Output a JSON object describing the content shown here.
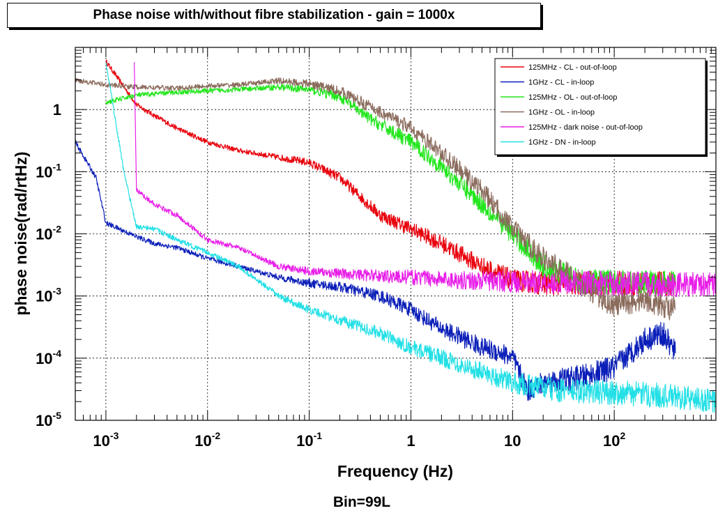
{
  "title": "Phase noise with/without fibre stabilization - gain = 1000x",
  "chart_data": {
    "type": "line",
    "title": "Phase noise with/without fibre stabilization - gain = 1000x",
    "xlabel": "Frequency (Hz)",
    "ylabel": "phase noise(rad/rtHz)",
    "footer": "Bin=99L",
    "x_scale": "log",
    "y_scale": "log",
    "xlim": [
      0.0005,
      1000
    ],
    "ylim": [
      1e-05,
      10
    ],
    "grid": true,
    "legend_position": "top-right",
    "x_ticks": [
      {
        "value": 0.001,
        "base": "10",
        "exp": "-3"
      },
      {
        "value": 0.01,
        "base": "10",
        "exp": "-2"
      },
      {
        "value": 0.1,
        "base": "10",
        "exp": "-1"
      },
      {
        "value": 1,
        "base": "1",
        "exp": ""
      },
      {
        "value": 10,
        "base": "10",
        "exp": ""
      },
      {
        "value": 100,
        "base": "10",
        "exp": "2"
      }
    ],
    "y_ticks": [
      {
        "value": 1,
        "base": "1",
        "exp": ""
      },
      {
        "value": 0.1,
        "base": "10",
        "exp": "-1"
      },
      {
        "value": 0.01,
        "base": "10",
        "exp": "-2"
      },
      {
        "value": 0.001,
        "base": "10",
        "exp": "-3"
      },
      {
        "value": 0.0001,
        "base": "10",
        "exp": "-4"
      },
      {
        "value": 1e-05,
        "base": "10",
        "exp": "-5"
      }
    ],
    "series": [
      {
        "name": "125MHz - CL - out-of-loop",
        "color": "#e8000b",
        "points": [
          [
            0.001,
            6
          ],
          [
            0.002,
            1.2
          ],
          [
            0.003,
            0.8
          ],
          [
            0.005,
            0.5
          ],
          [
            0.01,
            0.3
          ],
          [
            0.02,
            0.22
          ],
          [
            0.05,
            0.17
          ],
          [
            0.1,
            0.14
          ],
          [
            0.2,
            0.08
          ],
          [
            0.5,
            0.02
          ],
          [
            1,
            0.012
          ],
          [
            2,
            0.007
          ],
          [
            5,
            0.003
          ],
          [
            10,
            0.0018
          ],
          [
            20,
            0.0016
          ],
          [
            50,
            0.0016
          ],
          [
            100,
            0.0016
          ],
          [
            400,
            0.0016
          ]
        ]
      },
      {
        "name": "1GHz - CL - in-loop",
        "color": "#0a1eb8",
        "points": [
          [
            0.0005,
            0.3
          ],
          [
            0.0008,
            0.08
          ],
          [
            0.001,
            0.015
          ],
          [
            0.002,
            0.009
          ],
          [
            0.003,
            0.007
          ],
          [
            0.005,
            0.006
          ],
          [
            0.01,
            0.004
          ],
          [
            0.02,
            0.003
          ],
          [
            0.05,
            0.002
          ],
          [
            0.1,
            0.0016
          ],
          [
            0.2,
            0.0014
          ],
          [
            0.5,
            0.001
          ],
          [
            1,
            0.0006
          ],
          [
            2,
            0.0003
          ],
          [
            5,
            0.00015
          ],
          [
            8,
            0.00012
          ],
          [
            10,
            0.0001
          ],
          [
            14,
            3e-05
          ],
          [
            20,
            4e-05
          ],
          [
            50,
            5e-05
          ],
          [
            100,
            7e-05
          ],
          [
            200,
            0.0002
          ],
          [
            300,
            0.00025
          ],
          [
            400,
            0.00012
          ]
        ]
      },
      {
        "name": "125MHz - OL - out-of-loop",
        "color": "#22e61c",
        "points": [
          [
            0.001,
            1.3
          ],
          [
            0.002,
            1.7
          ],
          [
            0.005,
            1.9
          ],
          [
            0.01,
            2
          ],
          [
            0.02,
            2.1
          ],
          [
            0.05,
            2.3
          ],
          [
            0.1,
            2.1
          ],
          [
            0.2,
            1.6
          ],
          [
            0.4,
            0.7
          ],
          [
            1,
            0.3
          ],
          [
            2,
            0.12
          ],
          [
            5,
            0.03
          ],
          [
            10,
            0.01
          ],
          [
            20,
            0.003
          ],
          [
            50,
            0.0017
          ],
          [
            100,
            0.0017
          ],
          [
            400,
            0.0016
          ]
        ]
      },
      {
        "name": "1GHz - OL - in-loop",
        "color": "#8a6b5c",
        "points": [
          [
            0.0005,
            3
          ],
          [
            0.001,
            2.5
          ],
          [
            0.002,
            2.3
          ],
          [
            0.005,
            2.2
          ],
          [
            0.01,
            2.4
          ],
          [
            0.02,
            2.5
          ],
          [
            0.05,
            2.9
          ],
          [
            0.1,
            2.6
          ],
          [
            0.2,
            2
          ],
          [
            0.4,
            1.1
          ],
          [
            1,
            0.5
          ],
          [
            2,
            0.2
          ],
          [
            5,
            0.05
          ],
          [
            10,
            0.012
          ],
          [
            20,
            0.004
          ],
          [
            50,
            0.0015
          ],
          [
            100,
            0.0007
          ],
          [
            200,
            0.0009
          ],
          [
            400,
            0.0006
          ]
        ]
      },
      {
        "name": "125MHz - dark noise - out-of-loop",
        "color": "#e81ee8",
        "points": [
          [
            0.0019,
            6
          ],
          [
            0.002,
            0.05
          ],
          [
            0.003,
            0.03
          ],
          [
            0.005,
            0.02
          ],
          [
            0.01,
            0.008
          ],
          [
            0.02,
            0.006
          ],
          [
            0.05,
            0.003
          ],
          [
            0.1,
            0.0025
          ],
          [
            0.3,
            0.0022
          ],
          [
            1,
            0.002
          ],
          [
            3,
            0.0018
          ],
          [
            10,
            0.0017
          ],
          [
            100,
            0.0016
          ],
          [
            1000,
            0.0015
          ]
        ]
      },
      {
        "name": "1GHz - DN - in-loop",
        "color": "#22e0e6",
        "points": [
          [
            0.001,
            6
          ],
          [
            0.0015,
            0.1
          ],
          [
            0.002,
            0.013
          ],
          [
            0.003,
            0.012
          ],
          [
            0.005,
            0.008
          ],
          [
            0.01,
            0.005
          ],
          [
            0.02,
            0.003
          ],
          [
            0.05,
            0.001
          ],
          [
            0.1,
            0.0006
          ],
          [
            0.5,
            0.00025
          ],
          [
            1,
            0.00015
          ],
          [
            5,
            6e-05
          ],
          [
            10,
            4e-05
          ],
          [
            30,
            3e-05
          ],
          [
            100,
            2.8e-05
          ],
          [
            300,
            2.5e-05
          ],
          [
            1000,
            2e-05
          ]
        ]
      }
    ]
  }
}
